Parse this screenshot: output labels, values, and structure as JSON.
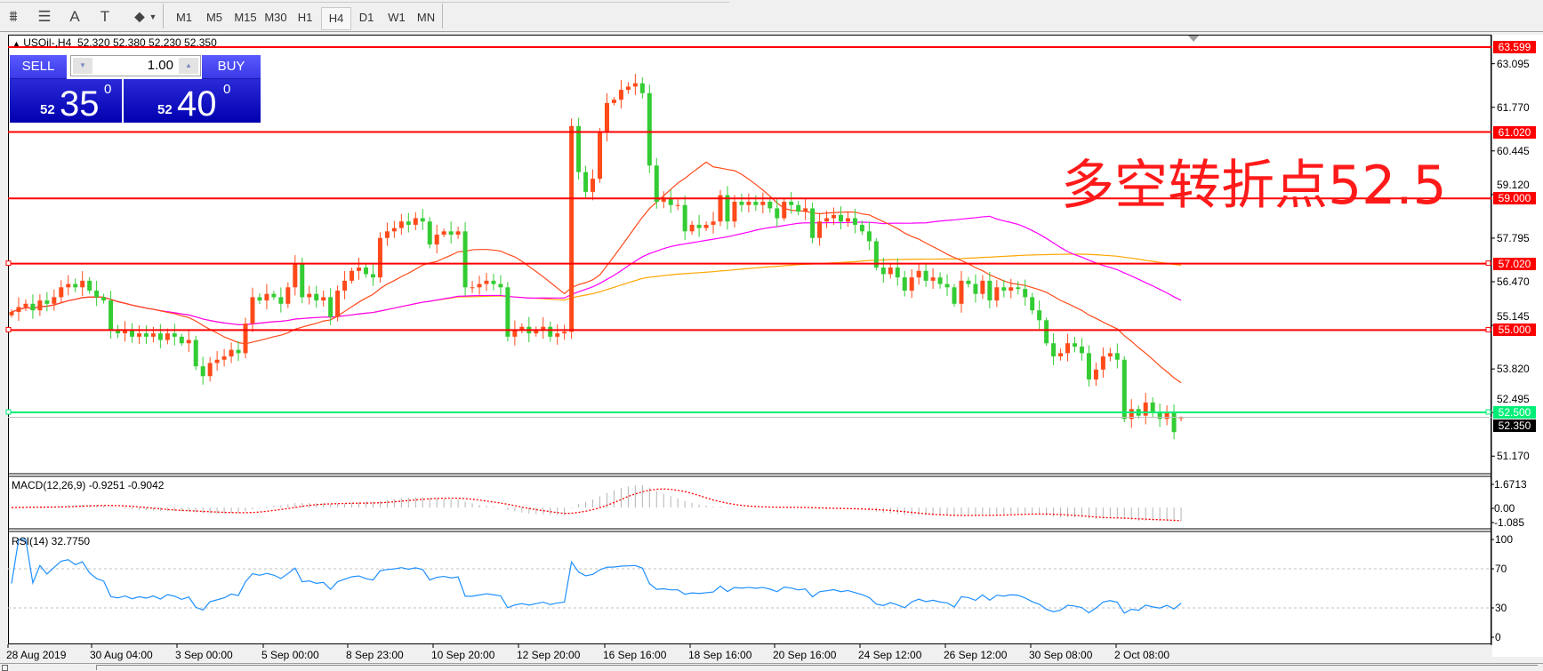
{
  "toolbar": {
    "tools": [
      {
        "name": "fibonacci-fan-icon",
        "glyph": "⩩"
      },
      {
        "name": "fibonacci-lines-icon",
        "glyph": "☰"
      },
      {
        "name": "text-icon",
        "glyph": "A"
      },
      {
        "name": "text-label-icon",
        "glyph": "T"
      },
      {
        "name": "arrows-icon",
        "glyph": "⬥"
      }
    ],
    "timeframes": [
      "M1",
      "M5",
      "M15",
      "M30",
      "H1",
      "H4",
      "D1",
      "W1",
      "MN"
    ],
    "active_timeframe": "H4"
  },
  "chart": {
    "symbol_line": "USOil-,H4  52.320 52.380 52.230 52.350",
    "bid_label": "52.350",
    "colors": {
      "up": "#ff4a1a",
      "down": "#33cc33",
      "level": "#ff0000",
      "pivot": "#00ee77",
      "ma_fast": "#ff4a1a",
      "ma_mid": "#ff00ff",
      "ma_slow": "#ffa500",
      "rsi": "#1e90ff",
      "macd_signal": "#ff0000",
      "macd_hist": "#b4b4b4"
    }
  },
  "trade_panel": {
    "sell_label": "SELL",
    "buy_label": "BUY",
    "lot": "1.00",
    "sell_price": {
      "prefix": "52",
      "big": "35",
      "sup": "0"
    },
    "buy_price": {
      "prefix": "52",
      "big": "40",
      "sup": "0"
    }
  },
  "annotation": "多空转折点52.5",
  "levels": [
    {
      "value": 63.599,
      "label": "63.599",
      "type": "resistance"
    },
    {
      "value": 61.02,
      "label": "61.020",
      "type": "resistance"
    },
    {
      "value": 59.0,
      "label": "59.000",
      "type": "resistance"
    },
    {
      "value": 57.02,
      "label": "57.020",
      "type": "resistance"
    },
    {
      "value": 55.0,
      "label": "55.000",
      "type": "resistance"
    },
    {
      "value": 52.5,
      "label": "52.500",
      "type": "pivot"
    }
  ],
  "price_axis": [
    "63.095",
    "61.770",
    "60.445",
    "59.120",
    "57.795",
    "56.470",
    "55.145",
    "53.820",
    "52.495",
    "51.170"
  ],
  "time_axis": [
    "28 Aug 2019",
    "30 Aug 04:00",
    "3 Sep 00:00",
    "5 Sep 00:00",
    "8 Sep 23:00",
    "10 Sep 20:00",
    "12 Sep 20:00",
    "16 Sep 16:00",
    "18 Sep 16:00",
    "20 Sep 16:00",
    "24 Sep 12:00",
    "26 Sep 12:00",
    "30 Sep 08:00",
    "2 Oct 08:00"
  ],
  "macd": {
    "label": "MACD(12,26,9) -0.9251 -0.9042",
    "axis": [
      "1.6713",
      "0.00",
      "-1.085"
    ],
    "range": [
      -1.085,
      1.6713
    ]
  },
  "rsi": {
    "label": "RSI(14) 32.7750",
    "axis": [
      "100",
      "70",
      "30",
      "0"
    ],
    "levels": [
      70,
      30
    ]
  },
  "chart_data": {
    "type": "candlestick",
    "timeframe": "H4",
    "last_bar": {
      "open": 52.32,
      "high": 52.38,
      "low": 52.23,
      "close": 52.35
    },
    "closes": [
      55.55,
      55.7,
      55.8,
      55.6,
      55.9,
      55.8,
      56.0,
      56.3,
      56.4,
      56.3,
      56.5,
      56.2,
      56.0,
      55.9,
      55.0,
      54.9,
      55.0,
      54.8,
      54.9,
      54.8,
      54.9,
      54.7,
      54.9,
      54.8,
      54.6,
      54.7,
      53.9,
      53.6,
      54.0,
      54.1,
      54.2,
      54.4,
      54.3,
      55.2,
      56.0,
      55.9,
      56.1,
      56.0,
      55.8,
      56.3,
      57.0,
      56.0,
      56.1,
      55.9,
      56.0,
      55.4,
      56.2,
      56.5,
      56.8,
      56.9,
      56.7,
      56.6,
      57.8,
      58.0,
      58.1,
      58.3,
      58.2,
      58.4,
      58.3,
      57.6,
      57.9,
      58.0,
      57.9,
      58.0,
      56.3,
      56.3,
      56.4,
      56.5,
      56.4,
      56.3,
      54.8,
      55.0,
      55.1,
      54.9,
      55.0,
      55.1,
      54.8,
      54.9,
      54.95,
      61.2,
      59.8,
      59.2,
      59.6,
      61.0,
      61.9,
      62.0,
      62.3,
      62.4,
      62.5,
      62.2,
      60.0,
      58.9,
      59.0,
      58.8,
      58.8,
      58.0,
      58.2,
      58.1,
      58.2,
      58.3,
      59.1,
      58.3,
      58.9,
      58.8,
      58.9,
      58.8,
      58.9,
      58.7,
      58.4,
      58.9,
      58.8,
      58.6,
      58.7,
      57.8,
      58.3,
      58.4,
      58.5,
      58.3,
      58.4,
      58.2,
      58.0,
      57.7,
      56.9,
      56.7,
      56.9,
      56.6,
      56.2,
      56.6,
      56.8,
      56.5,
      56.6,
      56.4,
      56.3,
      55.8,
      56.5,
      56.4,
      56.1,
      56.5,
      55.9,
      56.3,
      56.2,
      56.3,
      56.25,
      56.0,
      55.6,
      55.3,
      54.6,
      54.2,
      54.3,
      54.6,
      54.5,
      54.3,
      53.5,
      53.8,
      54.2,
      54.3,
      54.1,
      52.3,
      52.6,
      52.4,
      52.8,
      52.5,
      52.3,
      52.5,
      51.9,
      52.35
    ],
    "ylim": [
      50.6,
      63.9
    ]
  }
}
